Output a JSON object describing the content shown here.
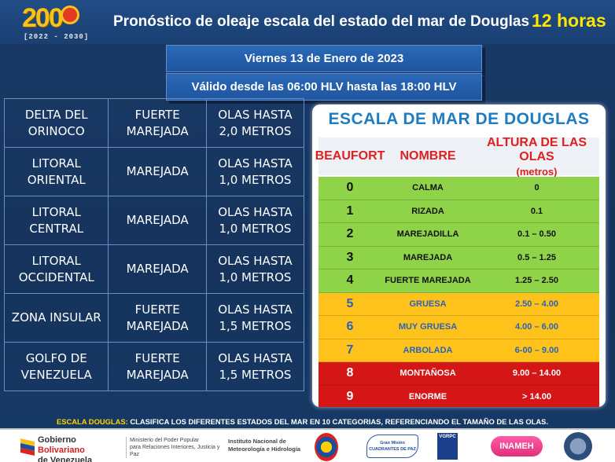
{
  "header": {
    "logo_text": "200",
    "logo_years": "[2022 - 2030]",
    "title": "Pronóstico de oleaje escala del estado del mar de Douglas",
    "hours": "12 horas"
  },
  "banners": {
    "date": "Viernes 13 de Enero de 2023",
    "validity": "Válido desde las 06:00 HLV hasta las 18:00 HLV"
  },
  "forecast": [
    {
      "region": [
        "DELTA DEL",
        "ORINOCO"
      ],
      "state": [
        "FUERTE",
        "MAREJADA"
      ],
      "waves": [
        "OLAS HASTA",
        "2,0 METROS"
      ]
    },
    {
      "region": [
        "LITORAL",
        "ORIENTAL"
      ],
      "state": [
        "MAREJADA"
      ],
      "waves": [
        "OLAS HASTA",
        "1,0 METROS"
      ]
    },
    {
      "region": [
        "LITORAL",
        "CENTRAL"
      ],
      "state": [
        "MAREJADA"
      ],
      "waves": [
        "OLAS HASTA",
        "1,0 METROS"
      ]
    },
    {
      "region": [
        "LITORAL",
        "OCCIDENTAL"
      ],
      "state": [
        "MAREJADA"
      ],
      "waves": [
        "OLAS HASTA",
        "1,0 METROS"
      ]
    },
    {
      "region": [
        "ZONA INSULAR"
      ],
      "state": [
        "FUERTE",
        "MAREJADA"
      ],
      "waves": [
        "OLAS HASTA",
        "1,5 METROS"
      ]
    },
    {
      "region": [
        "GOLFO DE",
        "VENEZUELA"
      ],
      "state": [
        "FUERTE",
        "MAREJADA"
      ],
      "waves": [
        "OLAS HASTA",
        "1,5 METROS"
      ]
    }
  ],
  "scale": {
    "title": "ESCALA  DE MAR DE DOUGLAS",
    "headers": {
      "beaufort": "BEAUFORT",
      "nombre": "NOMBRE",
      "altura": "ALTURA DE LAS OLAS",
      "altura_unit": "(metros)"
    },
    "rows": [
      {
        "level": "0",
        "name": "CALMA",
        "height": "0",
        "bg": "#8fd448",
        "fg": "#111111"
      },
      {
        "level": "1",
        "name": "RIZADA",
        "height": "0.1",
        "bg": "#8fd448",
        "fg": "#111111"
      },
      {
        "level": "2",
        "name": "MAREJADILLA",
        "height": "0.1 – 0.50",
        "bg": "#8fd448",
        "fg": "#111111"
      },
      {
        "level": "3",
        "name": "MAREJADA",
        "height": "0.5 – 1.25",
        "bg": "#8fd448",
        "fg": "#111111"
      },
      {
        "level": "4",
        "name": "FUERTE MAREJADA",
        "height": "1.25 – 2.50",
        "bg": "#8fd448",
        "fg": "#111111"
      },
      {
        "level": "5",
        "name": "GRUESA",
        "height": "2.50 – 4.00",
        "bg": "#ffc21a",
        "fg": "#2a63b8"
      },
      {
        "level": "6",
        "name": "MUY GRUESA",
        "height": "4.00 – 6.00",
        "bg": "#ffc21a",
        "fg": "#2a63b8"
      },
      {
        "level": "7",
        "name": "ARBOLADA",
        "height": "6-00 – 9.00",
        "bg": "#ffc21a",
        "fg": "#2a63b8"
      },
      {
        "level": "8",
        "name": "MONTAÑOSA",
        "height": "9.00 – 14.00",
        "bg": "#d41616",
        "fg": "#ffffff"
      },
      {
        "level": "9",
        "name": "ENORME",
        "height": ">  14.00",
        "bg": "#d41616",
        "fg": "#ffffff"
      }
    ]
  },
  "footnote": {
    "lead": "ESCALA DOUGLAS:",
    "text": "CLASIFICA LOS DIFERENTES ESTADOS DEL MAR EN 10 CATEGORIAS, REFERENCIANDO  EL TAMAÑO DE LAS OLAS."
  },
  "logos": {
    "gov_line1": "Gobierno ",
    "gov_line1b": "Bolivariano",
    "gov_line2": "de Venezuela",
    "ministry_line1": "Ministerio del Poder Popular",
    "ministry_line2": "para Relaciones Interiores, Justicia y Paz",
    "inameh_line1": "Instituto Nacional de",
    "inameh_line2": "Meteorología e Hidrología",
    "cuadrantes": "Gran Misión CUADRANTES DE PAZ",
    "vgrpc": "VGRPC",
    "inameh": "INAMEH"
  },
  "colors": {
    "header_bg": "#1a3f72",
    "title_accent": "#ffe600",
    "panel_title": "#1f7cc0",
    "scale_header": "#e02020"
  }
}
